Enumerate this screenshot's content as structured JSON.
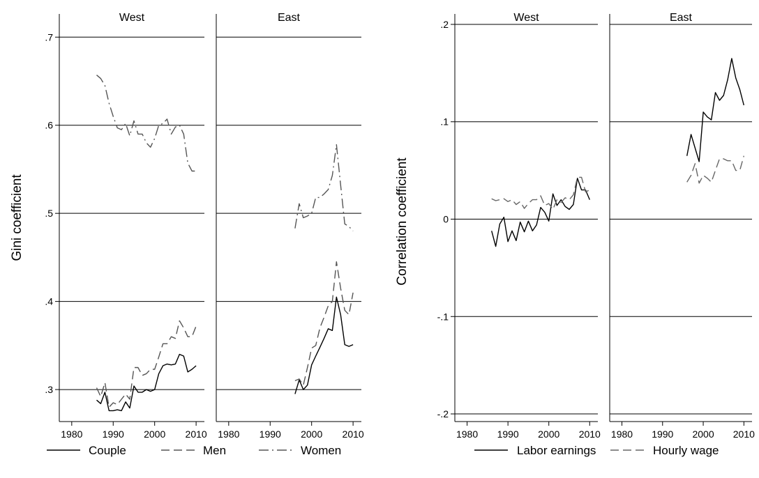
{
  "chart_data": [
    {
      "type": "line",
      "ylabel": "Gini coefficient",
      "ylim": [
        0.27,
        0.72
      ],
      "yticks": [
        0.3,
        0.4,
        0.5,
        0.6,
        0.7
      ],
      "ytick_labels": [
        ".3",
        ".4",
        ".5",
        ".6",
        ".7"
      ],
      "xlim": [
        1977,
        2012
      ],
      "xticks": [
        1980,
        1990,
        2000,
        2010
      ],
      "xtick_labels": [
        "1980",
        "1990",
        "2000",
        "2010"
      ],
      "grid": "horizontal",
      "legend_position": "bottom",
      "legend": [
        "Couple",
        "Men",
        "Women"
      ],
      "panels": [
        {
          "title": "West",
          "series": [
            {
              "name": "Couple",
              "style": "solid",
              "color": "#000000",
              "x": [
                1986,
                1987,
                1988,
                1989,
                1990,
                1991,
                1992,
                1993,
                1994,
                1995,
                1996,
                1997,
                1998,
                1999,
                2000,
                2001,
                2002,
                2003,
                2004,
                2005,
                2006,
                2007,
                2008,
                2009,
                2010
              ],
              "y": [
                0.288,
                0.284,
                0.297,
                0.276,
                0.276,
                0.277,
                0.276,
                0.286,
                0.279,
                0.304,
                0.297,
                0.297,
                0.3,
                0.298,
                0.3,
                0.318,
                0.327,
                0.329,
                0.328,
                0.329,
                0.34,
                0.338,
                0.32,
                0.323,
                0.327
              ]
            },
            {
              "name": "Men",
              "style": "dashed",
              "color": "#555555",
              "x": [
                1986,
                1987,
                1988,
                1989,
                1990,
                1991,
                1992,
                1993,
                1994,
                1995,
                1996,
                1997,
                1998,
                1999,
                2000,
                2001,
                2002,
                2003,
                2004,
                2005,
                2006,
                2007,
                2008,
                2009,
                2010
              ],
              "y": [
                0.302,
                0.292,
                0.308,
                0.28,
                0.285,
                0.283,
                0.289,
                0.295,
                0.289,
                0.325,
                0.325,
                0.316,
                0.318,
                0.323,
                0.323,
                0.337,
                0.352,
                0.352,
                0.36,
                0.358,
                0.378,
                0.37,
                0.36,
                0.36,
                0.372
              ]
            },
            {
              "name": "Women",
              "style": "dashdot",
              "color": "#555555",
              "x": [
                1986,
                1987,
                1988,
                1989,
                1990,
                1991,
                1992,
                1993,
                1994,
                1995,
                1996,
                1997,
                1998,
                1999,
                2000,
                2001,
                2002,
                2003,
                2004,
                2005,
                2006,
                2007,
                2008,
                2009,
                2010
              ],
              "y": [
                0.657,
                0.653,
                0.645,
                0.625,
                0.61,
                0.597,
                0.595,
                0.602,
                0.588,
                0.605,
                0.59,
                0.59,
                0.58,
                0.575,
                0.585,
                0.6,
                0.602,
                0.607,
                0.59,
                0.598,
                0.6,
                0.59,
                0.557,
                0.548,
                0.548
              ]
            }
          ]
        },
        {
          "title": "East",
          "series": [
            {
              "name": "Couple",
              "style": "solid",
              "color": "#000000",
              "x": [
                1996,
                1997,
                1998,
                1999,
                2000,
                2001,
                2002,
                2003,
                2004,
                2005,
                2006,
                2007,
                2008,
                2009,
                2010
              ],
              "y": [
                0.295,
                0.311,
                0.3,
                0.305,
                0.328,
                0.338,
                0.348,
                0.358,
                0.369,
                0.367,
                0.405,
                0.385,
                0.351,
                0.349,
                0.351
              ]
            },
            {
              "name": "Men",
              "style": "dashed",
              "color": "#555555",
              "x": [
                1996,
                1997,
                1998,
                1999,
                2000,
                2001,
                2002,
                2003,
                2004,
                2005,
                2006,
                2007,
                2008,
                2009,
                2010
              ],
              "y": [
                0.31,
                0.312,
                0.305,
                0.325,
                0.347,
                0.35,
                0.37,
                0.382,
                0.395,
                0.4,
                0.445,
                0.415,
                0.39,
                0.385,
                0.41
              ]
            },
            {
              "name": "Women",
              "style": "dashdot",
              "color": "#555555",
              "x": [
                1996,
                1997,
                1998,
                1999,
                2000,
                2001,
                2002,
                2003,
                2004,
                2005,
                2006,
                2007,
                2008,
                2009,
                2010
              ],
              "y": [
                0.483,
                0.511,
                0.495,
                0.497,
                0.5,
                0.518,
                0.518,
                0.522,
                0.527,
                0.543,
                0.578,
                0.532,
                0.488,
                0.485,
                0.48
              ]
            }
          ]
        }
      ]
    },
    {
      "type": "line",
      "ylabel": "Correlation coefficient",
      "ylim": [
        -0.21,
        0.205
      ],
      "yticks": [
        -0.2,
        -0.1,
        0,
        0.1,
        0.2
      ],
      "ytick_labels": [
        "-.2",
        "-.1",
        "0",
        ".1",
        ".2"
      ],
      "xlim": [
        1977,
        2012
      ],
      "xticks": [
        1980,
        1990,
        2000,
        2010
      ],
      "xtick_labels": [
        "1980",
        "1990",
        "2000",
        "2010"
      ],
      "grid": "horizontal",
      "legend_position": "bottom",
      "legend": [
        "Labor earnings",
        "Hourly wage"
      ],
      "panels": [
        {
          "title": "West",
          "series": [
            {
              "name": "Labor earnings",
              "style": "solid",
              "color": "#000000",
              "x": [
                1986,
                1987,
                1988,
                1989,
                1990,
                1991,
                1992,
                1993,
                1994,
                1995,
                1996,
                1997,
                1998,
                1999,
                2000,
                2001,
                2002,
                2003,
                2004,
                2005,
                2006,
                2007,
                2008,
                2009,
                2010
              ],
              "y": [
                -0.012,
                -0.028,
                -0.005,
                0.002,
                -0.023,
                -0.012,
                -0.022,
                -0.003,
                -0.013,
                -0.002,
                -0.012,
                -0.006,
                0.012,
                0.007,
                -0.002,
                0.026,
                0.014,
                0.02,
                0.013,
                0.01,
                0.015,
                0.042,
                0.03,
                0.03,
                0.02
              ]
            },
            {
              "name": "Hourly wage",
              "style": "dashed",
              "color": "#666666",
              "x": [
                1986,
                1987,
                1988,
                1989,
                1990,
                1991,
                1992,
                1993,
                1994,
                1995,
                1996,
                1997,
                1998,
                1999,
                2000,
                2001,
                2002,
                2003,
                2004,
                2005,
                2006,
                2007,
                2008,
                2009,
                2010
              ],
              "y": [
                0.021,
                0.019,
                0.02,
                0.021,
                0.018,
                0.02,
                0.015,
                0.018,
                0.011,
                0.016,
                0.02,
                0.02,
                0.024,
                0.014,
                0.016,
                0.01,
                0.02,
                0.017,
                0.022,
                0.02,
                0.025,
                0.043,
                0.043,
                0.028,
                0.03
              ]
            }
          ]
        },
        {
          "title": "East",
          "series": [
            {
              "name": "Labor earnings",
              "style": "solid",
              "color": "#000000",
              "x": [
                1996,
                1997,
                1998,
                1999,
                2000,
                2001,
                2002,
                2003,
                2004,
                2005,
                2006,
                2007,
                2008,
                2009,
                2010
              ],
              "y": [
                0.065,
                0.087,
                0.073,
                0.059,
                0.11,
                0.105,
                0.102,
                0.13,
                0.122,
                0.127,
                0.143,
                0.165,
                0.145,
                0.133,
                0.117
              ]
            },
            {
              "name": "Hourly wage",
              "style": "dashed",
              "color": "#666666",
              "x": [
                1996,
                1997,
                1998,
                1999,
                2000,
                2001,
                2002,
                2003,
                2004,
                2005,
                2006,
                2007,
                2008,
                2009,
                2010
              ],
              "y": [
                0.038,
                0.045,
                0.057,
                0.037,
                0.045,
                0.042,
                0.038,
                0.05,
                0.062,
                0.062,
                0.06,
                0.06,
                0.05,
                0.05,
                0.065
              ]
            }
          ]
        }
      ]
    }
  ]
}
